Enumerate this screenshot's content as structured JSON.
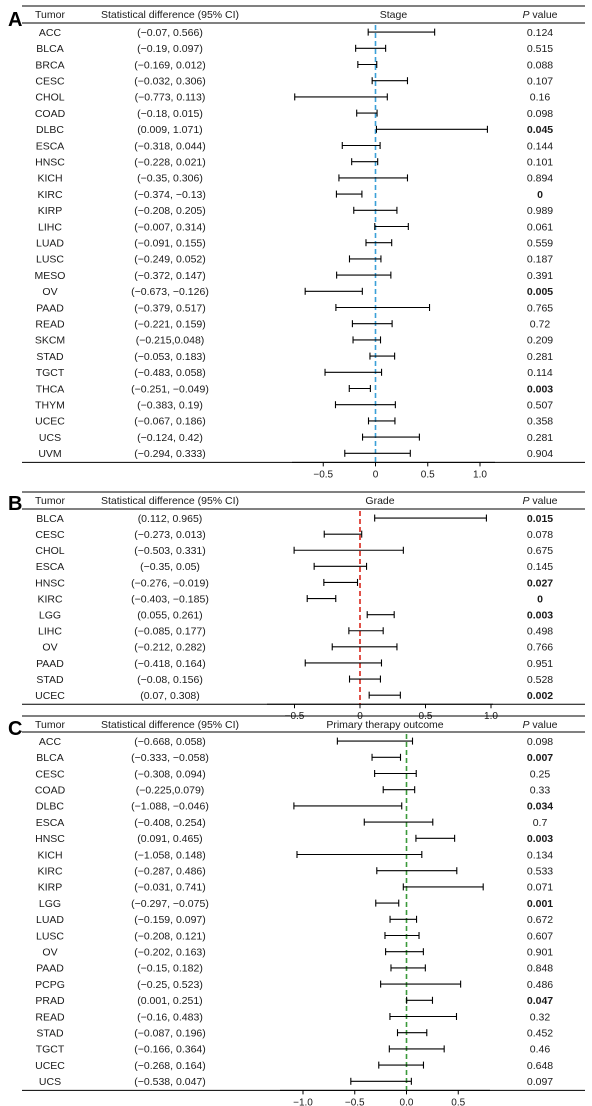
{
  "chart_data": [
    {
      "type": "forest",
      "panel_label": "A",
      "title": "Stage",
      "columns": [
        "Tumor",
        "Statistical difference (95% CI)",
        "Stage",
        "P value"
      ],
      "reference_line": 0,
      "reference_color": "#3aa0d8",
      "x_ticks": [
        "−0.5",
        "0",
        "0.5",
        "1.0"
      ],
      "x_tick_values": [
        -0.5,
        0,
        0.5,
        1.0
      ],
      "xlim": [
        -0.85,
        1.1
      ],
      "rows": [
        {
          "tumor": "ACC",
          "ci": "(−0.07, 0.566)",
          "lo": -0.07,
          "hi": 0.566,
          "p": "0.124",
          "sig": false
        },
        {
          "tumor": "BLCA",
          "ci": "(−0.19, 0.097)",
          "lo": -0.19,
          "hi": 0.097,
          "p": "0.515",
          "sig": false
        },
        {
          "tumor": "BRCA",
          "ci": "(−0.169, 0.012)",
          "lo": -0.169,
          "hi": 0.012,
          "p": "0.088",
          "sig": false
        },
        {
          "tumor": "CESC",
          "ci": "(−0.032, 0.306)",
          "lo": -0.032,
          "hi": 0.306,
          "p": "0.107",
          "sig": false
        },
        {
          "tumor": "CHOL",
          "ci": "(−0.773, 0.113)",
          "lo": -0.773,
          "hi": 0.113,
          "p": "0.16",
          "sig": false
        },
        {
          "tumor": "COAD",
          "ci": "(−0.18, 0.015)",
          "lo": -0.18,
          "hi": 0.015,
          "p": "0.098",
          "sig": false
        },
        {
          "tumor": "DLBC",
          "ci": "(0.009, 1.071)",
          "lo": 0.009,
          "hi": 1.071,
          "p": "0.045",
          "sig": true
        },
        {
          "tumor": "ESCA",
          "ci": "(−0.318, 0.044)",
          "lo": -0.318,
          "hi": 0.044,
          "p": "0.144",
          "sig": false
        },
        {
          "tumor": "HNSC",
          "ci": "(−0.228, 0.021)",
          "lo": -0.228,
          "hi": 0.021,
          "p": "0.101",
          "sig": false
        },
        {
          "tumor": "KICH",
          "ci": "(−0.35, 0.306)",
          "lo": -0.35,
          "hi": 0.306,
          "p": "0.894",
          "sig": false
        },
        {
          "tumor": "KIRC",
          "ci": "(−0.374, −0.13)",
          "lo": -0.374,
          "hi": -0.13,
          "p": "0",
          "sig": true
        },
        {
          "tumor": "KIRP",
          "ci": "(−0.208, 0.205)",
          "lo": -0.208,
          "hi": 0.205,
          "p": "0.989",
          "sig": false
        },
        {
          "tumor": "LIHC",
          "ci": "(−0.007, 0.314)",
          "lo": -0.007,
          "hi": 0.314,
          "p": "0.061",
          "sig": false
        },
        {
          "tumor": "LUAD",
          "ci": "(−0.091, 0.155)",
          "lo": -0.091,
          "hi": 0.155,
          "p": "0.559",
          "sig": false
        },
        {
          "tumor": "LUSC",
          "ci": "(−0.249, 0.052)",
          "lo": -0.249,
          "hi": 0.052,
          "p": "0.187",
          "sig": false
        },
        {
          "tumor": "MESO",
          "ci": "(−0.372, 0.147)",
          "lo": -0.372,
          "hi": 0.147,
          "p": "0.391",
          "sig": false
        },
        {
          "tumor": "OV",
          "ci": "(−0.673, −0.126)",
          "lo": -0.673,
          "hi": -0.126,
          "p": "0.005",
          "sig": true
        },
        {
          "tumor": "PAAD",
          "ci": "(−0.379, 0.517)",
          "lo": -0.379,
          "hi": 0.517,
          "p": "0.765",
          "sig": false
        },
        {
          "tumor": "READ",
          "ci": "(−0.221, 0.159)",
          "lo": -0.221,
          "hi": 0.159,
          "p": "0.72",
          "sig": false
        },
        {
          "tumor": "SKCM",
          "ci": "(−0.215,0.048)",
          "lo": -0.215,
          "hi": 0.048,
          "p": "0.209",
          "sig": false
        },
        {
          "tumor": "STAD",
          "ci": "(−0.053, 0.183)",
          "lo": -0.053,
          "hi": 0.183,
          "p": "0.281",
          "sig": false
        },
        {
          "tumor": "TGCT",
          "ci": "(−0.483, 0.058)",
          "lo": -0.483,
          "hi": 0.058,
          "p": "0.114",
          "sig": false
        },
        {
          "tumor": "THCA",
          "ci": "(−0.251, −0.049)",
          "lo": -0.251,
          "hi": -0.049,
          "p": "0.003",
          "sig": true
        },
        {
          "tumor": "THYM",
          "ci": "(−0.383, 0.19)",
          "lo": -0.383,
          "hi": 0.19,
          "p": "0.507",
          "sig": false
        },
        {
          "tumor": "UCEC",
          "ci": "(−0.067, 0.186)",
          "lo": -0.067,
          "hi": 0.186,
          "p": "0.358",
          "sig": false
        },
        {
          "tumor": "UCS",
          "ci": "(−0.124, 0.42)",
          "lo": -0.124,
          "hi": 0.42,
          "p": "0.281",
          "sig": false
        },
        {
          "tumor": "UVM",
          "ci": "(−0.294, 0.333)",
          "lo": -0.294,
          "hi": 0.333,
          "p": "0.904",
          "sig": false
        }
      ]
    },
    {
      "type": "forest",
      "panel_label": "B",
      "title": "Grade",
      "columns": [
        "Tumor",
        "Statistical difference (95% CI)",
        "Grade",
        "P value"
      ],
      "reference_line": 0,
      "reference_color": "#d9261c",
      "x_ticks": [
        "−0.5",
        "0",
        "0.5",
        "1.0"
      ],
      "x_tick_values": [
        -0.5,
        0,
        0.5,
        1.0
      ],
      "xlim": [
        -0.55,
        1.05
      ],
      "rows": [
        {
          "tumor": "BLCA",
          "ci": "(0.112, 0.965)",
          "lo": 0.112,
          "hi": 0.965,
          "p": "0.015",
          "sig": true
        },
        {
          "tumor": "CESC",
          "ci": "(−0.273, 0.013)",
          "lo": -0.273,
          "hi": 0.013,
          "p": "0.078",
          "sig": false
        },
        {
          "tumor": "CHOL",
          "ci": "(−0.503, 0.331)",
          "lo": -0.503,
          "hi": 0.331,
          "p": "0.675",
          "sig": false
        },
        {
          "tumor": "ESCA",
          "ci": "(−0.35, 0.05)",
          "lo": -0.35,
          "hi": 0.05,
          "p": "0.145",
          "sig": false
        },
        {
          "tumor": "HNSC",
          "ci": "(−0.276, −0.019)",
          "lo": -0.276,
          "hi": -0.019,
          "p": "0.027",
          "sig": true
        },
        {
          "tumor": "KIRC",
          "ci": "(−0.403, −0.185)",
          "lo": -0.403,
          "hi": -0.185,
          "p": "0",
          "sig": true
        },
        {
          "tumor": "LGG",
          "ci": "(0.055, 0.261)",
          "lo": 0.055,
          "hi": 0.261,
          "p": "0.003",
          "sig": true
        },
        {
          "tumor": "LIHC",
          "ci": "(−0.085, 0.177)",
          "lo": -0.085,
          "hi": 0.177,
          "p": "0.498",
          "sig": false
        },
        {
          "tumor": "OV",
          "ci": "(−0.212, 0.282)",
          "lo": -0.212,
          "hi": 0.282,
          "p": "0.766",
          "sig": false
        },
        {
          "tumor": "PAAD",
          "ci": "(−0.418, 0.164)",
          "lo": -0.418,
          "hi": 0.164,
          "p": "0.951",
          "sig": false
        },
        {
          "tumor": "STAD",
          "ci": "(−0.08, 0.156)",
          "lo": -0.08,
          "hi": 0.156,
          "p": "0.528",
          "sig": false
        },
        {
          "tumor": "UCEC",
          "ci": "(0.07, 0.308)",
          "lo": 0.07,
          "hi": 0.308,
          "p": "0.002",
          "sig": true
        }
      ]
    },
    {
      "type": "forest",
      "panel_label": "C",
      "title": "Primary therapy outcome",
      "columns": [
        "Tumor",
        "Statistical difference (95% CI)",
        "Primary therapy outcome",
        "P value"
      ],
      "reference_line": 0,
      "reference_color": "#3a9a3a",
      "x_ticks": [
        "−1.0",
        "−0.5",
        "0.0",
        "0.5"
      ],
      "x_tick_values": [
        -1.0,
        -0.5,
        0.0,
        0.5
      ],
      "xlim": [
        -1.12,
        0.78
      ],
      "rows": [
        {
          "tumor": "ACC",
          "ci": "(−0.668, 0.058)",
          "lo": -0.668,
          "hi": 0.058,
          "p": "0.098",
          "sig": false
        },
        {
          "tumor": "BLCA",
          "ci": "(−0.333, −0.058)",
          "lo": -0.333,
          "hi": -0.058,
          "p": "0.007",
          "sig": true
        },
        {
          "tumor": "CESC",
          "ci": "(−0.308, 0.094)",
          "lo": -0.308,
          "hi": 0.094,
          "p": "0.25",
          "sig": false
        },
        {
          "tumor": "COAD",
          "ci": "(−0.225,0.079)",
          "lo": -0.225,
          "hi": 0.079,
          "p": "0.33",
          "sig": false
        },
        {
          "tumor": "DLBC",
          "ci": "(−1.088, −0.046)",
          "lo": -1.088,
          "hi": -0.046,
          "p": "0.034",
          "sig": true
        },
        {
          "tumor": "ESCA",
          "ci": "(−0.408, 0.254)",
          "lo": -0.408,
          "hi": 0.254,
          "p": "0.7",
          "sig": false
        },
        {
          "tumor": "HNSC",
          "ci": "(0.091, 0.465)",
          "lo": 0.091,
          "hi": 0.465,
          "p": "0.003",
          "sig": true
        },
        {
          "tumor": "KICH",
          "ci": "(−1.058, 0.148)",
          "lo": -1.058,
          "hi": 0.148,
          "p": "0.134",
          "sig": false
        },
        {
          "tumor": "KIRC",
          "ci": "(−0.287, 0.486)",
          "lo": -0.287,
          "hi": 0.486,
          "p": "0.533",
          "sig": false
        },
        {
          "tumor": "KIRP",
          "ci": "(−0.031, 0.741)",
          "lo": -0.031,
          "hi": 0.741,
          "p": "0.071",
          "sig": false
        },
        {
          "tumor": "LGG",
          "ci": "(−0.297, −0.075)",
          "lo": -0.297,
          "hi": -0.075,
          "p": "0.001",
          "sig": true
        },
        {
          "tumor": "LUAD",
          "ci": "(−0.159, 0.097)",
          "lo": -0.159,
          "hi": 0.097,
          "p": "0.672",
          "sig": false
        },
        {
          "tumor": "LUSC",
          "ci": "(−0.208, 0.121)",
          "lo": -0.208,
          "hi": 0.121,
          "p": "0.607",
          "sig": false
        },
        {
          "tumor": "OV",
          "ci": "(−0.202, 0.163)",
          "lo": -0.202,
          "hi": 0.163,
          "p": "0.901",
          "sig": false
        },
        {
          "tumor": "PAAD",
          "ci": "(−0.15, 0.182)",
          "lo": -0.15,
          "hi": 0.182,
          "p": "0.848",
          "sig": false
        },
        {
          "tumor": "PCPG",
          "ci": "(−0.25, 0.523)",
          "lo": -0.25,
          "hi": 0.523,
          "p": "0.486",
          "sig": false
        },
        {
          "tumor": "PRAD",
          "ci": "(0.001, 0.251)",
          "lo": 0.001,
          "hi": 0.251,
          "p": "0.047",
          "sig": true
        },
        {
          "tumor": "READ",
          "ci": "(−0.16, 0.483)",
          "lo": -0.16,
          "hi": 0.483,
          "p": "0.32",
          "sig": false
        },
        {
          "tumor": "STAD",
          "ci": "(−0.087, 0.196)",
          "lo": -0.087,
          "hi": 0.196,
          "p": "0.452",
          "sig": false
        },
        {
          "tumor": "TGCT",
          "ci": "(−0.166, 0.364)",
          "lo": -0.166,
          "hi": 0.364,
          "p": "0.46",
          "sig": false
        },
        {
          "tumor": "UCEC",
          "ci": "(−0.268, 0.164)",
          "lo": -0.268,
          "hi": 0.164,
          "p": "0.648",
          "sig": false
        },
        {
          "tumor": "UCS",
          "ci": "(−0.538, 0.047)",
          "lo": -0.538,
          "hi": 0.047,
          "p": "0.097",
          "sig": false
        }
      ]
    }
  ]
}
